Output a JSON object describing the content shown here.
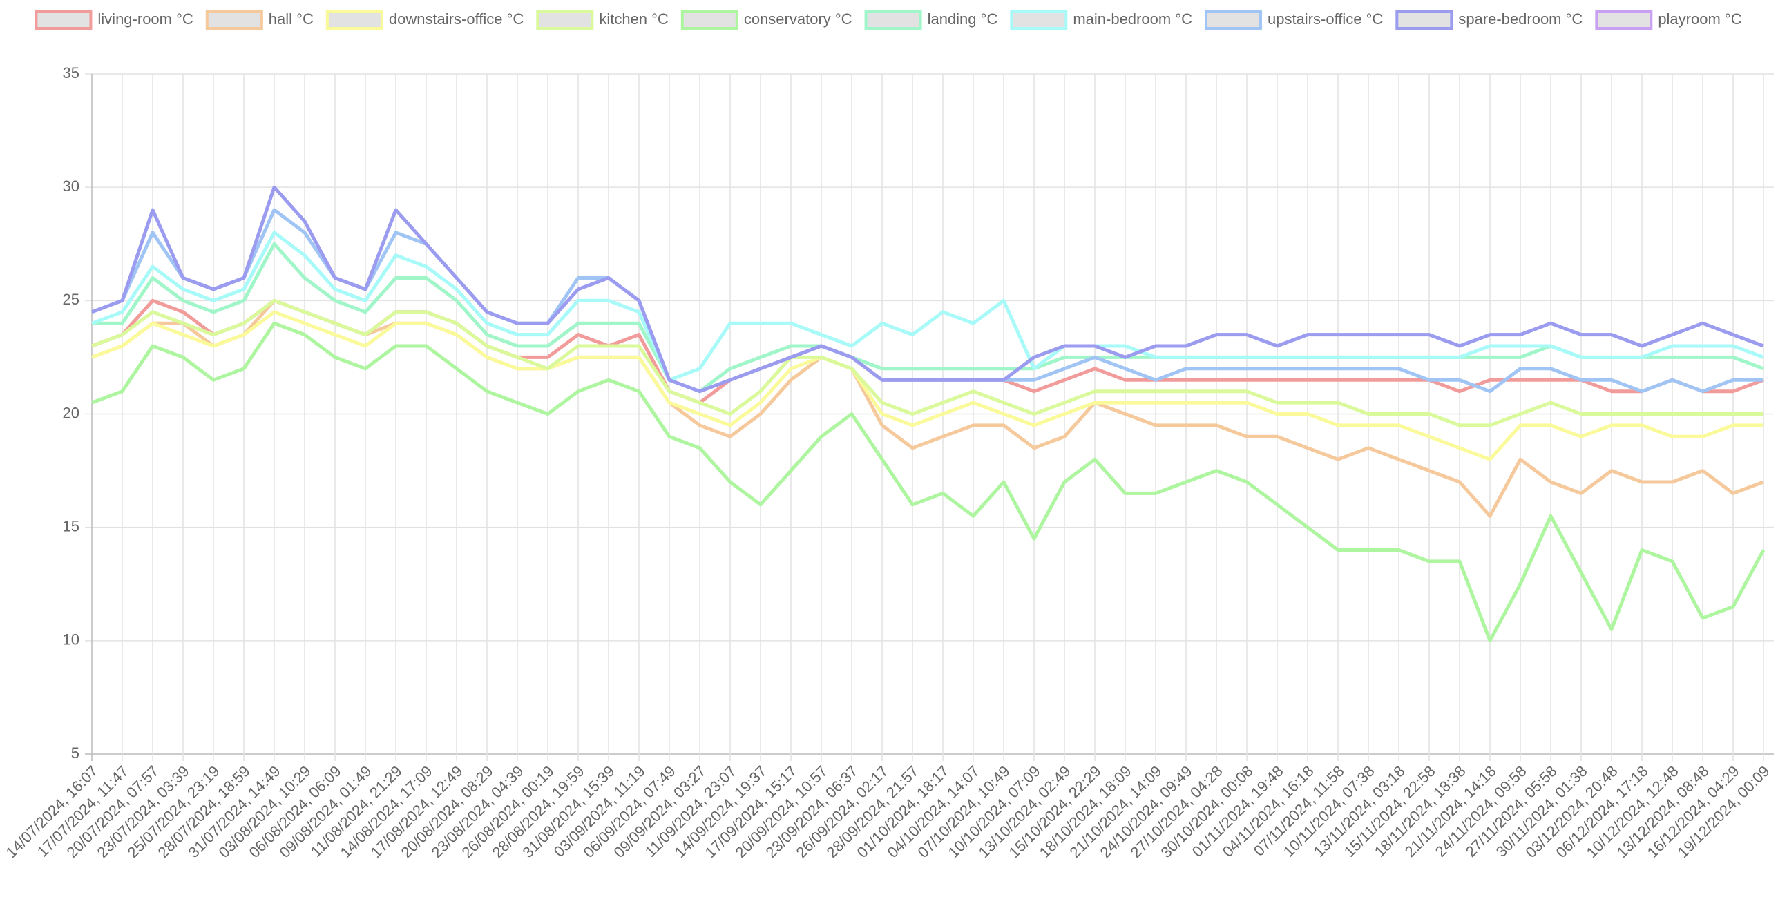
{
  "chart_data": {
    "type": "line",
    "categories": [
      "14/07/2024, 16:07",
      "17/07/2024, 11:47",
      "20/07/2024, 07:57",
      "23/07/2024, 03:39",
      "25/07/2024, 23:19",
      "28/07/2024, 18:59",
      "31/07/2024, 14:49",
      "03/08/2024, 10:29",
      "06/08/2024, 06:09",
      "09/08/2024, 01:49",
      "11/08/2024, 21:29",
      "14/08/2024, 17:09",
      "17/08/2024, 12:49",
      "20/08/2024, 08:29",
      "23/08/2024, 04:39",
      "26/08/2024, 00:19",
      "28/08/2024, 19:59",
      "31/08/2024, 15:39",
      "03/09/2024, 11:19",
      "06/09/2024, 07:49",
      "09/09/2024, 03:27",
      "11/09/2024, 23:07",
      "14/09/2024, 19:37",
      "17/09/2024, 15:17",
      "20/09/2024, 10:57",
      "23/09/2024, 06:37",
      "26/09/2024, 02:17",
      "28/09/2024, 21:57",
      "01/10/2024, 18:17",
      "04/10/2024, 14:07",
      "07/10/2024, 10:49",
      "10/10/2024, 07:09",
      "13/10/2024, 02:49",
      "15/10/2024, 22:29",
      "18/10/2024, 18:09",
      "21/10/2024, 14:09",
      "24/10/2024, 09:49",
      "27/10/2024, 04:28",
      "30/10/2024, 00:08",
      "01/11/2024, 19:48",
      "04/11/2024, 16:18",
      "07/11/2024, 11:58",
      "10/11/2024, 07:38",
      "13/11/2024, 03:18",
      "15/11/2024, 22:58",
      "18/11/2024, 18:38",
      "21/11/2024, 14:18",
      "24/11/2024, 09:58",
      "27/11/2024, 05:58",
      "30/11/2024, 01:38",
      "03/12/2024, 20:48",
      "06/12/2024, 17:18",
      "10/12/2024, 12:48",
      "13/12/2024, 08:48",
      "16/12/2024, 04:29",
      "19/12/2024, 00:09"
    ],
    "ylim": [
      5,
      35
    ],
    "yticks": [
      5,
      10,
      15,
      20,
      25,
      30,
      35
    ],
    "grid": true,
    "series": [
      {
        "name": "living-room °C",
        "color": "#f29b9b",
        "values": [
          23,
          23.5,
          25,
          24.5,
          23.5,
          24,
          25,
          24.5,
          24,
          23.5,
          24.5,
          24.5,
          24,
          23,
          22.5,
          22.5,
          23.5,
          23,
          23.5,
          21,
          20.5,
          21.5,
          22,
          22.5,
          23,
          22.5,
          21.5,
          21.5,
          21.5,
          21.5,
          21.5,
          21,
          21.5,
          22,
          21.5,
          21.5,
          21.5,
          21.5,
          21.5,
          21.5,
          21.5,
          21.5,
          21.5,
          21.5,
          21.5,
          21,
          21.5,
          21.5,
          21.5,
          21.5,
          21,
          21,
          21.5,
          21,
          21,
          21.5
        ]
      },
      {
        "name": "hall °C",
        "color": "#f5c99b",
        "values": [
          22.5,
          23,
          24,
          24,
          23,
          23.5,
          25,
          24.5,
          24,
          23.5,
          24,
          24,
          23.5,
          22.5,
          22,
          22,
          22.5,
          22.5,
          22.5,
          20.5,
          19.5,
          19,
          20,
          21.5,
          22.5,
          22,
          19.5,
          18.5,
          19,
          19.5,
          19.5,
          18.5,
          19,
          20.5,
          20,
          19.5,
          19.5,
          19.5,
          19,
          19,
          18.5,
          18,
          18.5,
          18,
          17.5,
          17,
          15.5,
          18,
          17,
          16.5,
          17.5,
          17,
          17,
          17.5,
          16.5,
          17
        ]
      },
      {
        "name": "downstairs-office °C",
        "color": "#fafa9b",
        "values": [
          22.5,
          23,
          24,
          23.5,
          23,
          23.5,
          24.5,
          24,
          23.5,
          23,
          24,
          24,
          23.5,
          22.5,
          22,
          22,
          22.5,
          22.5,
          22.5,
          20.5,
          20,
          19.5,
          20.5,
          22,
          22.5,
          22,
          20,
          19.5,
          20,
          20.5,
          20,
          19.5,
          20,
          20.5,
          20.5,
          20.5,
          20.5,
          20.5,
          20.5,
          20,
          20,
          19.5,
          19.5,
          19.5,
          19,
          18.5,
          18,
          19.5,
          19.5,
          19,
          19.5,
          19.5,
          19,
          19,
          19.5,
          19.5
        ]
      },
      {
        "name": "kitchen °C",
        "color": "#d9f99b",
        "values": [
          23,
          23.5,
          24.5,
          24,
          23.5,
          24,
          25,
          24.5,
          24,
          23.5,
          24.5,
          24.5,
          24,
          23,
          22.5,
          22,
          23,
          23,
          23,
          21,
          20.5,
          20,
          21,
          22.5,
          22.5,
          22,
          20.5,
          20,
          20.5,
          21,
          20.5,
          20,
          20.5,
          21,
          21,
          21,
          21,
          21,
          21,
          20.5,
          20.5,
          20.5,
          20,
          20,
          20,
          19.5,
          19.5,
          20,
          20.5,
          20,
          20,
          20,
          20,
          20,
          20,
          20
        ]
      },
      {
        "name": "conservatory °C",
        "color": "#aef5a0",
        "values": [
          20.5,
          21,
          23,
          22.5,
          21.5,
          22,
          24,
          23.5,
          22.5,
          22,
          23,
          23,
          22,
          21,
          20.5,
          20,
          21,
          21.5,
          21,
          19,
          18.5,
          17,
          16,
          17.5,
          19,
          20,
          18,
          16,
          16.5,
          15.5,
          17,
          14.5,
          17,
          18,
          16.5,
          16.5,
          17,
          17.5,
          17,
          16,
          15,
          14,
          14,
          14,
          13.5,
          13.5,
          10,
          12.5,
          15.5,
          13,
          10.5,
          14,
          13.5,
          11,
          11.5,
          14
        ]
      },
      {
        "name": "landing °C",
        "color": "#a0f5c9",
        "values": [
          24,
          24,
          26,
          25,
          24.5,
          25,
          27.5,
          26,
          25,
          24.5,
          26,
          26,
          25,
          23.5,
          23,
          23,
          24,
          24,
          24,
          21.5,
          21,
          22,
          22.5,
          23,
          23,
          22.5,
          22,
          22,
          22,
          22,
          22,
          22,
          22.5,
          22.5,
          22.5,
          22.5,
          22.5,
          22.5,
          22.5,
          22.5,
          22.5,
          22.5,
          22.5,
          22.5,
          22.5,
          22.5,
          22.5,
          22.5,
          23,
          22.5,
          22.5,
          22.5,
          22.5,
          22.5,
          22.5,
          22
        ]
      },
      {
        "name": "main-bedroom °C",
        "color": "#a8faf8",
        "values": [
          24,
          24.5,
          26.5,
          25.5,
          25,
          25.5,
          28,
          27,
          25.5,
          25,
          27,
          26.5,
          25.5,
          24,
          23.5,
          23.5,
          25,
          25,
          24.5,
          21.5,
          22,
          24,
          24,
          24,
          23.5,
          23,
          24,
          23.5,
          24.5,
          24,
          25,
          22,
          23,
          23,
          23,
          22.5,
          22.5,
          22.5,
          22.5,
          22.5,
          22.5,
          22.5,
          22.5,
          22.5,
          22.5,
          22.5,
          23,
          23,
          23,
          22.5,
          22.5,
          22.5,
          23,
          23,
          23,
          22.5
        ]
      },
      {
        "name": "upstairs-office °C",
        "color": "#a0c5f5",
        "values": [
          24.5,
          25,
          28,
          26,
          25.5,
          26,
          29,
          28,
          26,
          25.5,
          28,
          27.5,
          26,
          24.5,
          24,
          24,
          26,
          26,
          25,
          21.5,
          21,
          21.5,
          22,
          22.5,
          23,
          22.5,
          21.5,
          21.5,
          21.5,
          21.5,
          21.5,
          21.5,
          22,
          22.5,
          22,
          21.5,
          22,
          22,
          22,
          22,
          22,
          22,
          22,
          22,
          21.5,
          21.5,
          21,
          22,
          22,
          21.5,
          21.5,
          21,
          21.5,
          21,
          21.5,
          21.5
        ]
      },
      {
        "name": "spare-bedroom °C",
        "color": "#9b9bf0",
        "values": [
          24.5,
          25,
          29,
          26,
          25.5,
          26,
          30,
          28.5,
          26,
          25.5,
          29,
          27.5,
          26,
          24.5,
          24,
          24,
          25.5,
          26,
          25,
          21.5,
          21,
          21.5,
          22,
          22.5,
          23,
          22.5,
          21.5,
          21.5,
          21.5,
          21.5,
          21.5,
          22.5,
          23,
          23,
          22.5,
          23,
          23,
          23.5,
          23.5,
          23,
          23.5,
          23.5,
          23.5,
          23.5,
          23.5,
          23,
          23.5,
          23.5,
          24,
          23.5,
          23.5,
          23,
          23.5,
          24,
          23.5,
          23
        ]
      },
      {
        "name": "playroom °C",
        "color": "#c9a0f2",
        "values": [
          null,
          null,
          null,
          null,
          null,
          null,
          null,
          null,
          null,
          null,
          null,
          null,
          null,
          null,
          null,
          null,
          null,
          null,
          null,
          null,
          null,
          null,
          null,
          null,
          null,
          null,
          null,
          null,
          null,
          null,
          null,
          null,
          null,
          null,
          null,
          null,
          null,
          null,
          null,
          null,
          null,
          null,
          null,
          null,
          null,
          null,
          null,
          null,
          null,
          null,
          null,
          null,
          null,
          null,
          null,
          null
        ]
      }
    ]
  }
}
